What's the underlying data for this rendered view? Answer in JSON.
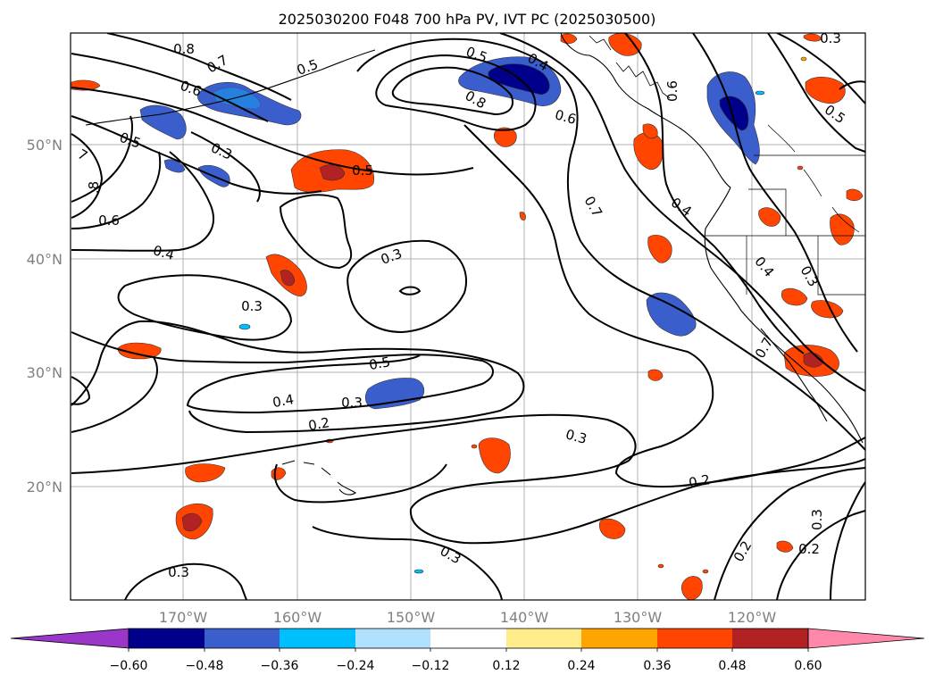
{
  "title": "2025030200 F048 700 hPa PV, IVT PC (2025030500)",
  "lat_labels": [
    "50°N",
    "40°N",
    "30°N",
    "20°N"
  ],
  "lon_labels": [
    "170°W",
    "160°W",
    "150°W",
    "140°W",
    "130°W",
    "120°W"
  ],
  "colorbar": {
    "ticks": [
      "−0.60",
      "−0.48",
      "−0.36",
      "−0.24",
      "−0.12",
      "0.12",
      "0.24",
      "0.36",
      "0.48",
      "0.60"
    ],
    "colors": [
      "#9a36c8",
      "#00008b",
      "#3a5fcd",
      "#00bfff",
      "#b0e2ff",
      "#ffffff",
      "#ffec8b",
      "#ffa500",
      "#ff4500",
      "#b22222",
      "#ff88aa"
    ]
  },
  "contour_labels": [
    "0.8",
    "0.7",
    "0.6",
    "0.5",
    "0.5",
    "0.3",
    "7",
    ".8",
    "0.6",
    "0.4",
    "0.5",
    "0.5",
    "0.8",
    "0.6",
    "0.6",
    "0.4",
    "0.3",
    "0.5",
    "0.7",
    "0.4",
    "0.3",
    "0.3",
    "0.5",
    "0.4",
    "0.3",
    "0.2",
    "0.3",
    "0.2",
    "0.3",
    "0.2",
    "0.3",
    "0.3",
    "0.2",
    "0.4",
    "0.3",
    "0.7"
  ]
}
